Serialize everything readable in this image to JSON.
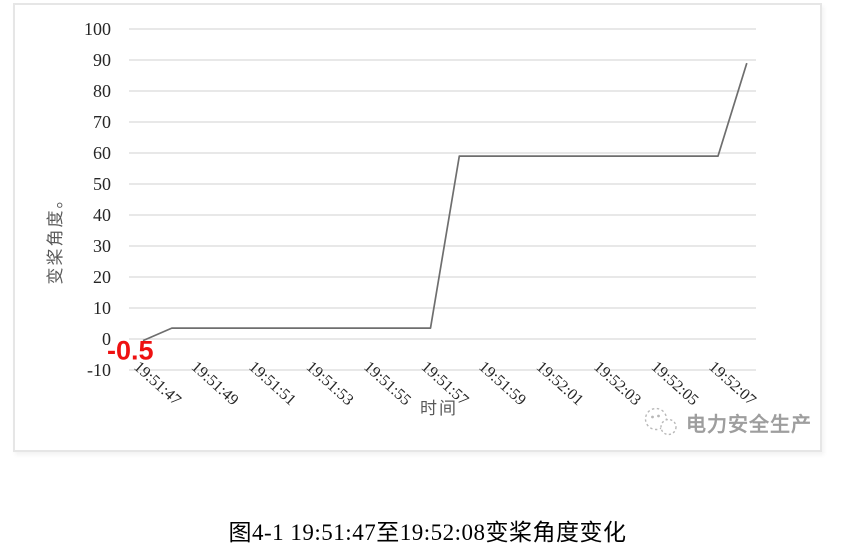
{
  "chart_data": {
    "type": "line",
    "title": "",
    "xlabel": "时间",
    "ylabel": "变桨角度。",
    "ylim": [
      -10,
      100
    ],
    "y_ticks": [
      100,
      90,
      80,
      70,
      60,
      50,
      40,
      30,
      20,
      10,
      0,
      -10
    ],
    "x_tick_labels": [
      "19:51:47",
      "19:51:49",
      "19:51:51",
      "19:51:53",
      "19:51:55",
      "19:51:57",
      "19:51:59",
      "19:52:01",
      "19:52:03",
      "19:52:05",
      "19:52:07"
    ],
    "x_tick_interval_seconds": 2,
    "grid": true,
    "legend": "none",
    "series": [
      {
        "name": "变桨角度",
        "color": "#6e6e6e",
        "points": [
          {
            "time": "19:51:47",
            "value": -0.5
          },
          {
            "time": "19:51:48",
            "value": 3.5
          },
          {
            "time": "19:51:57",
            "value": 3.5
          },
          {
            "time": "19:51:58",
            "value": 59
          },
          {
            "time": "19:52:07",
            "value": 59
          },
          {
            "time": "19:52:08",
            "value": 89
          }
        ]
      }
    ],
    "annotation": {
      "text": "-0.5",
      "color": "#ee1111",
      "attached_to": "19:51:47"
    },
    "colors": {
      "gridline": "#d9d9d9",
      "tick_label": "#262626",
      "axis_title": "#595959"
    }
  },
  "watermark": {
    "icon": "wechat-bubbles-icon",
    "text": "电力安全生产",
    "color": "#9e9e9e"
  },
  "caption": {
    "text": "图4-1 19:51:47至19:52:08变桨角度变化"
  }
}
